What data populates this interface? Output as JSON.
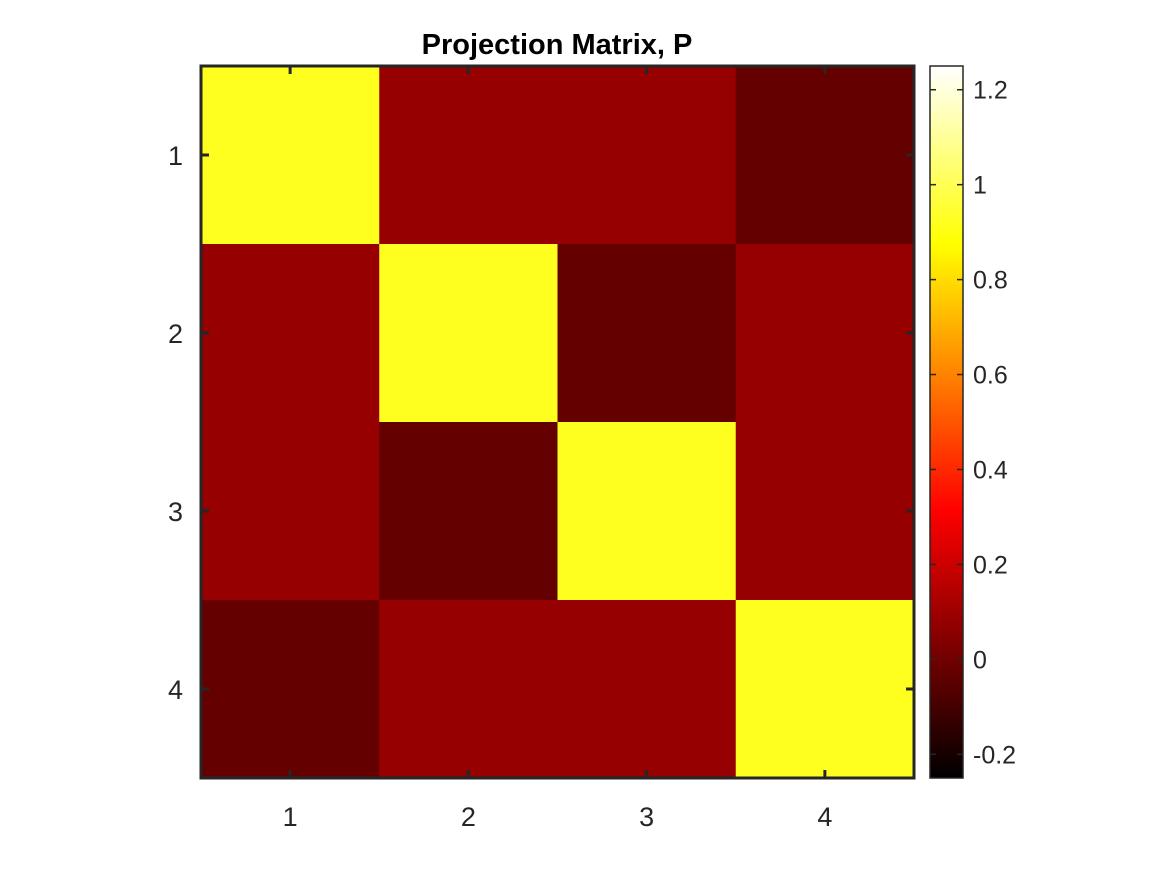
{
  "chart_data": {
    "type": "heatmap",
    "title": "Projection Matrix, P",
    "xlabel": "",
    "ylabel": "",
    "x_categories": [
      "1",
      "2",
      "3",
      "4"
    ],
    "y_categories": [
      "1",
      "2",
      "3",
      "4"
    ],
    "values": [
      [
        0.92,
        0.08,
        0.08,
        -0.03
      ],
      [
        0.08,
        0.92,
        -0.03,
        0.08
      ],
      [
        0.08,
        -0.03,
        0.92,
        0.08
      ],
      [
        -0.03,
        0.08,
        0.08,
        0.92
      ]
    ],
    "colormap": "hot",
    "clim": [
      -0.25,
      1.25
    ],
    "colorbar_ticks": [
      -0.2,
      0,
      0.2,
      0.4,
      0.6,
      0.8,
      1,
      1.2
    ],
    "colorbar_tick_labels": [
      "-0.2",
      "0",
      "0.2",
      "0.4",
      "0.6",
      "0.8",
      "1",
      "1.2"
    ],
    "colorbar_position": "right",
    "grid": false
  }
}
